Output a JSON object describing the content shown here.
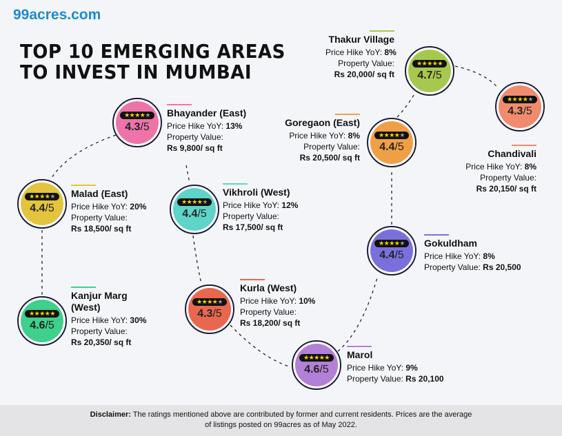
{
  "brand": "99acres.com",
  "title_line1": "TOP 10 EMERGING AREAS",
  "title_line2": "TO INVEST IN MUMBAI",
  "hike_label": "Price Hike YoY:",
  "value_label": "Property Value:",
  "rating_suffix": "/5",
  "areas": [
    {
      "name": "Thakur Village",
      "hike": "8%",
      "value": "Rs 20,000/ sq ft",
      "rating": "4.7",
      "color": "#a6c84f"
    },
    {
      "name": "Chandivali",
      "hike": "8%",
      "value": "Rs 20,150/ sq ft",
      "rating": "4.3",
      "color": "#f08b6d"
    },
    {
      "name": "Goregaon (East)",
      "hike": "8%",
      "value": "Rs 20,500/ sq ft",
      "rating": "4.4",
      "color": "#efa046"
    },
    {
      "name": "Bhayander (East)",
      "hike": "13%",
      "value": "Rs 9,800/ sq ft",
      "rating": "4.3",
      "color": "#ee73a9"
    },
    {
      "name": "Malad (East)",
      "hike": "20%",
      "value": "Rs 18,500/ sq ft",
      "rating": "4.4",
      "color": "#e3c43d"
    },
    {
      "name": "Vikhroli (West)",
      "hike": "12%",
      "value": "Rs 17,500/ sq ft",
      "rating": "4.4",
      "color": "#5fd4c9"
    },
    {
      "name": "Gokuldham",
      "hike": "8%",
      "value": "Rs 20,500",
      "rating": "4.4",
      "color": "#7a70dc"
    },
    {
      "name": "Kanjur Marg (West)",
      "hike": "30%",
      "value": "Rs 20,350/ sq ft",
      "rating": "4.6",
      "color": "#3fd08b"
    },
    {
      "name": "Kurla (West)",
      "hike": "10%",
      "value": "Rs 18,200/ sq ft",
      "rating": "4.3",
      "color": "#e8684f"
    },
    {
      "name": "Marol",
      "hike": "9%",
      "value": "Rs 20,100",
      "rating": "4.6",
      "color": "#b280d6"
    }
  ],
  "disclaimer_label": "Disclaimer:",
  "disclaimer_line1": " The ratings mentioned above are contributed by former and current residents. Prices are the average",
  "disclaimer_line2": "of listings posted on 99acres as of May 2022."
}
